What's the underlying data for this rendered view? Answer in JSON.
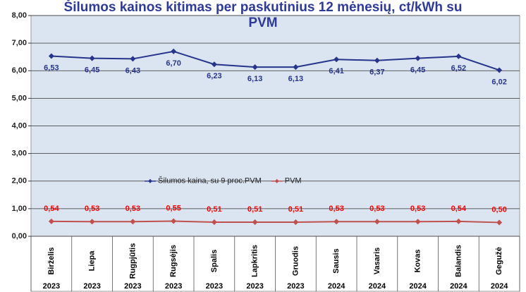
{
  "chart_data": {
    "type": "line",
    "title": "Šilumos kainos kitimas per paskutinius 12 mėnesių, ct/kWh su PVM",
    "categories": [
      "Birželis",
      "Liepa",
      "Rugpjūtis",
      "Rugsėjis",
      "Spalis",
      "Lapkritis",
      "Gruodis",
      "Sausis",
      "Vasaris",
      "Kovas",
      "Balandis",
      "Gegužė"
    ],
    "years": [
      "2023",
      "2023",
      "2023",
      "2023",
      "2023",
      "2023",
      "2023",
      "2024",
      "2024",
      "2024",
      "2024",
      "2024"
    ],
    "series": [
      {
        "name": "Šilumos kaina, su 9 proc.PVM",
        "color": "#27348b",
        "values": [
          6.53,
          6.45,
          6.43,
          6.7,
          6.23,
          6.13,
          6.13,
          6.41,
          6.37,
          6.45,
          6.52,
          6.02
        ],
        "value_labels": [
          "6,53",
          "6,45",
          "6,43",
          "6,70",
          "6,23",
          "6,13",
          "6,13",
          "6,41",
          "6,37",
          "6,45",
          "6,52",
          "6,02"
        ],
        "label_position": "below"
      },
      {
        "name": "PVM",
        "color": "#c0504d",
        "values": [
          0.54,
          0.53,
          0.53,
          0.55,
          0.51,
          0.51,
          0.51,
          0.53,
          0.53,
          0.53,
          0.54,
          0.5
        ],
        "value_labels": [
          "0,54",
          "0,53",
          "0,53",
          "0,55",
          "0,51",
          "0,51",
          "0,51",
          "0,53",
          "0,53",
          "0,53",
          "0,54",
          "0,50"
        ],
        "label_position": "above"
      }
    ],
    "ylim": [
      0,
      8
    ],
    "yticks": [
      {
        "value": 0,
        "label": "0,00"
      },
      {
        "value": 1,
        "label": "1,00"
      },
      {
        "value": 2,
        "label": "2,00"
      },
      {
        "value": 3,
        "label": "3,00"
      },
      {
        "value": 4,
        "label": "4,00"
      },
      {
        "value": 5,
        "label": "5,00"
      },
      {
        "value": 6,
        "label": "6,00"
      },
      {
        "value": 7,
        "label": "7,00"
      },
      {
        "value": 8,
        "label": "8,00"
      }
    ],
    "grid": true,
    "legend": "center"
  }
}
